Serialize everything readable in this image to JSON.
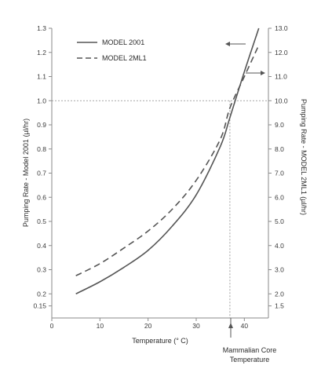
{
  "chart_data": {
    "type": "line",
    "xlabel": "Temperature (° C)",
    "ylabel_left": "Pumping Rate - Model 2001 (µl/hr)",
    "ylabel_right": "Pumping Rate - MODEL 2ML1 (µl/hr)",
    "xlim": [
      0,
      45
    ],
    "x_ticks": [
      0,
      10,
      20,
      30,
      40
    ],
    "ylim_left": [
      0.1,
      1.3
    ],
    "ylim_right": [
      1.0,
      13.0
    ],
    "y_ticks_left": [
      "1.3",
      "1.2",
      "1.1",
      "1.0",
      "0.9",
      "0.8",
      "0.7",
      "0.6",
      "0.5",
      "0.4",
      "0.3",
      "0.2",
      "0.15"
    ],
    "y_ticks_left_values": [
      1.3,
      1.2,
      1.1,
      1.0,
      0.9,
      0.8,
      0.7,
      0.6,
      0.5,
      0.4,
      0.3,
      0.2,
      0.15
    ],
    "y_ticks_right": [
      "13.0",
      "12.0",
      "11.0",
      "10.0",
      "9.0",
      "8.0",
      "7.0",
      "6.0",
      "5.0",
      "4.0",
      "3.0",
      "2.0",
      "1.5"
    ],
    "y_ticks_right_values": [
      13.0,
      12.0,
      11.0,
      10.0,
      9.0,
      8.0,
      7.0,
      6.0,
      5.0,
      4.0,
      3.0,
      2.0,
      1.5
    ],
    "series": [
      {
        "name": "MODEL 2001",
        "style": "solid",
        "axis": "left",
        "x": [
          5,
          10,
          15,
          20,
          25,
          30,
          35,
          37,
          40,
          43
        ],
        "values": [
          0.2,
          0.25,
          0.31,
          0.38,
          0.48,
          0.61,
          0.81,
          0.93,
          1.12,
          1.3
        ]
      },
      {
        "name": "MODEL 2ML1",
        "style": "dashed",
        "axis": "right",
        "x": [
          5,
          10,
          15,
          20,
          25,
          30,
          35,
          37,
          40,
          43
        ],
        "values": [
          2.75,
          3.25,
          3.9,
          4.6,
          5.5,
          6.7,
          8.4,
          9.7,
          11.0,
          12.3
        ]
      }
    ],
    "reference": {
      "x": 37,
      "y": 1.0,
      "annotation_line1": "Mammalian Core",
      "annotation_line2": "Temperature"
    },
    "legend_position": "top-left",
    "grid": false,
    "color": "#555555"
  }
}
